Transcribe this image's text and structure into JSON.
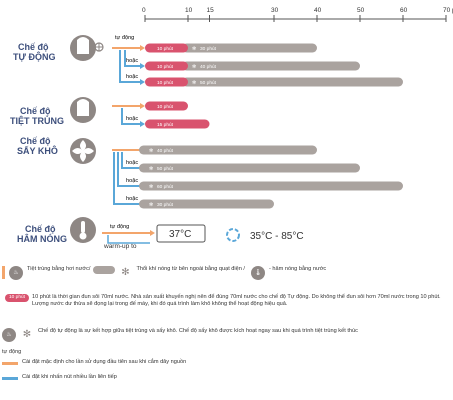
{
  "axis": {
    "unit": "phút",
    "ticks": [
      {
        "value": 0,
        "label": "0"
      },
      {
        "value": 10,
        "label": "10"
      },
      {
        "value": 15,
        "label": "15"
      },
      {
        "value": 30,
        "label": "30"
      },
      {
        "value": 40,
        "label": "40"
      },
      {
        "value": 50,
        "label": "50"
      },
      {
        "value": 60,
        "label": "60"
      },
      {
        "value": 70,
        "label": "70 phút"
      }
    ]
  },
  "modes": {
    "auto": {
      "line1": "Chế độ",
      "line2": "TỰ ĐỘNG"
    },
    "sterilize": {
      "line1": "Chế độ",
      "line2": "TIỆT TRÙNG"
    },
    "dry": {
      "line1": "Chế độ",
      "line2": "SẤY KHÔ"
    },
    "warm": {
      "line1": "Chế độ",
      "line2": "HÂM NÓNG"
    }
  },
  "flow_labels": {
    "auto": "tự động",
    "or": "hoặc",
    "warmup": "warm-up to"
  },
  "chart_data": [
    {
      "type": "bar",
      "group": "auto",
      "bars": [
        {
          "pink": 10,
          "pink_label": "10 phút",
          "gray_end": 40,
          "gray_label": "30 phút"
        },
        {
          "pink": 10,
          "pink_label": "10 phút",
          "gray_end": 50,
          "gray_label": "40 phút"
        },
        {
          "pink": 10,
          "pink_label": "10 phút",
          "gray_end": 60,
          "gray_label": "50 phút"
        }
      ]
    },
    {
      "type": "bar",
      "group": "sterilize",
      "bars": [
        {
          "pink": 10,
          "pink_label": "10 phút"
        },
        {
          "pink": 15,
          "pink_label": "15 phút"
        }
      ]
    },
    {
      "type": "bar",
      "group": "dry",
      "bars": [
        {
          "gray_end": 40,
          "gray_label": "40 phút"
        },
        {
          "gray_end": 50,
          "gray_label": "50 phút"
        },
        {
          "gray_end": 60,
          "gray_label": "60 phút"
        },
        {
          "gray_end": 30,
          "gray_label": "30 phút"
        }
      ]
    }
  ],
  "warm": {
    "temp": "37°C",
    "range": "35°C - 85°C"
  },
  "legend": {
    "steam": "Tiệt trùng bằng hơi nước/",
    "fan": "Thổi khí nóng từ bên ngoài bằng quạt điện /",
    "heat": "- hâm nóng bằng nước",
    "note_chip": "10 phút",
    "note_text": "10 phút là thời gian đun sôi 70ml nước. Nhà sản xuất khuyến nghị nên để đúng 70ml nước cho chế độ Tự động. Do không thể đun sôi hơn 70ml nước trong 10 phút. Lượng nước dư thừa sẽ đọng lại trong đế máy, khi đó quá trình làm khô không thể hoạt động hiệu quả.",
    "auto_text": "Chế độ tự động là sự kết hợp giữa tiệt trùng và sấy khô. Chế độ sấy khô được kích hoạt ngay sau khi quá trình tiệt trùng kết thúc",
    "auto_word": "tự động",
    "default_text": "Cài đặt mặc định cho lần sử dụng đầu tiên sau khi cắm dây nguồn",
    "multi_text": "Cài đặt khi nhấn nút nhiều lần liên tiếp"
  },
  "colors": {
    "pink": "#d9536e",
    "gray": "#aaa39f",
    "orange": "#f3a56b",
    "blue": "#5aa7d8",
    "navy": "#3d4f7c"
  }
}
